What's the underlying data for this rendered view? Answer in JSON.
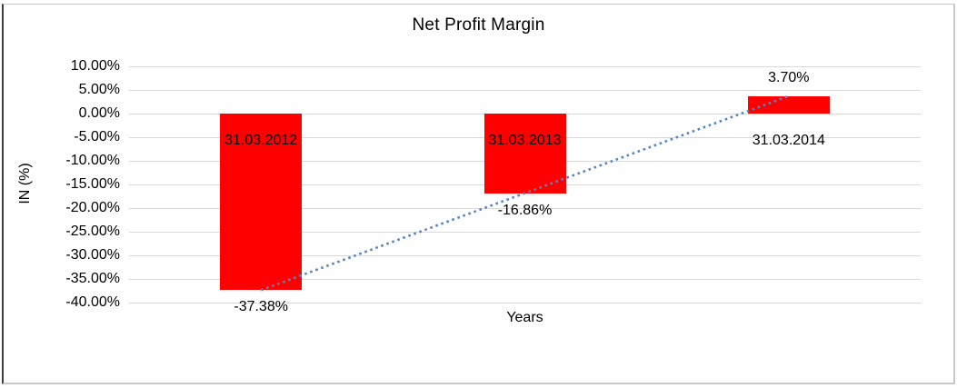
{
  "window": {
    "background": "#ffffff",
    "frame_border_color": "#c9c9c9",
    "frame_left_border_color": "#3b3b3b"
  },
  "chart_data": {
    "type": "bar",
    "title": "Net Profit Margin",
    "xlabel": "Years",
    "ylabel": "IN (%)",
    "categories": [
      "31.03.2012",
      "31.03.2013",
      "31.03.2014"
    ],
    "values": [
      -37.38,
      -16.86,
      3.7
    ],
    "data_labels": [
      "-37.38%",
      "-16.86%",
      "3.70%"
    ],
    "ylim": [
      -40,
      10
    ],
    "yticks": [
      {
        "value": 10,
        "label": "10.00%"
      },
      {
        "value": 5,
        "label": "5.00%"
      },
      {
        "value": 0,
        "label": "0.00%"
      },
      {
        "value": -5,
        "label": "-5.00%"
      },
      {
        "value": -10,
        "label": "-10.00%"
      },
      {
        "value": -15,
        "label": "-15.00%"
      },
      {
        "value": -20,
        "label": "-20.00%"
      },
      {
        "value": -25,
        "label": "-25.00%"
      },
      {
        "value": -30,
        "label": "-30.00%"
      },
      {
        "value": -35,
        "label": "-35.00%"
      },
      {
        "value": -40,
        "label": "-40.00%"
      }
    ],
    "grid": true,
    "legend": "none",
    "gridline_color": "#d9d9d9",
    "bar_color": "#ff0000",
    "text_color": "#000000",
    "trendline": {
      "type": "linear",
      "line_style": "dotted",
      "color": "#4f86c6",
      "from_category_index": 0,
      "from_value": -37.38,
      "to_category_index": 2,
      "to_value": 3.7
    }
  }
}
